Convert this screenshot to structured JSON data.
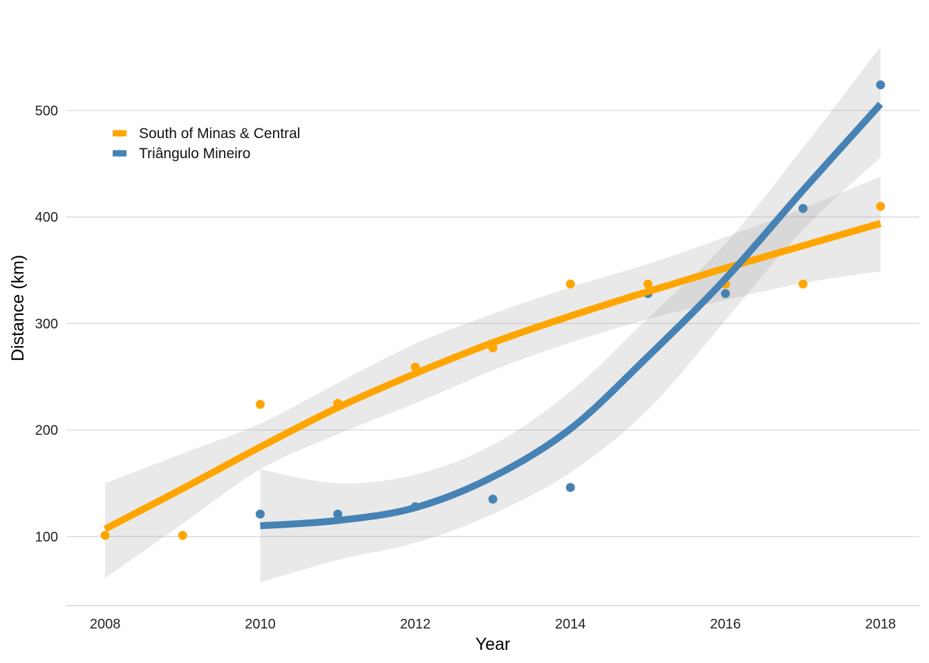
{
  "chart_data": {
    "type": "scatter",
    "title": "",
    "xlabel": "Year",
    "ylabel": "Distance (km)",
    "xlim": [
      2007.5,
      2018.5
    ],
    "ylim": [
      35,
      570
    ],
    "x_ticks": [
      2008,
      2010,
      2012,
      2014,
      2016,
      2018
    ],
    "y_ticks": [
      100,
      200,
      300,
      400,
      500
    ],
    "grid": "horizontal major lines only",
    "legend_position": "top-left",
    "series": [
      {
        "name": "South of Minas & Central",
        "color": "#FFA500",
        "points": {
          "x": [
            2008,
            2009,
            2010,
            2011,
            2012,
            2013,
            2014,
            2015,
            2016,
            2017,
            2018
          ],
          "y": [
            101,
            101,
            224,
            225,
            259,
            277,
            337,
            337,
            337,
            337,
            410
          ]
        },
        "smooth": {
          "x": [
            2008,
            2009,
            2010,
            2011,
            2012,
            2013,
            2014,
            2015,
            2016,
            2017,
            2018
          ],
          "y": [
            107,
            145,
            184,
            221,
            253,
            282,
            307,
            330,
            352,
            373,
            394
          ],
          "lower": [
            61,
            112,
            163,
            196,
            225,
            256,
            282,
            304,
            322,
            338,
            349
          ],
          "upper": [
            150,
            178,
            206,
            244,
            281,
            309,
            334,
            356,
            381,
            408,
            438
          ]
        }
      },
      {
        "name": "Triângulo Mineiro",
        "color": "#4682B4",
        "points": {
          "x": [
            2010,
            2011,
            2012,
            2013,
            2014,
            2015,
            2016,
            2017,
            2018
          ],
          "y": [
            121,
            121,
            128,
            135,
            146,
            328,
            328,
            408,
            524
          ]
        },
        "smooth": {
          "x": [
            2010,
            2011,
            2012,
            2013,
            2014,
            2015,
            2016,
            2017,
            2018
          ],
          "y": [
            110,
            115,
            127,
            156,
            201,
            269,
            342,
            425,
            506
          ],
          "lower": [
            57,
            78,
            94,
            121,
            160,
            219,
            303,
            388,
            456
          ],
          "upper": [
            163,
            150,
            158,
            186,
            236,
            305,
            375,
            465,
            560
          ]
        }
      }
    ]
  }
}
